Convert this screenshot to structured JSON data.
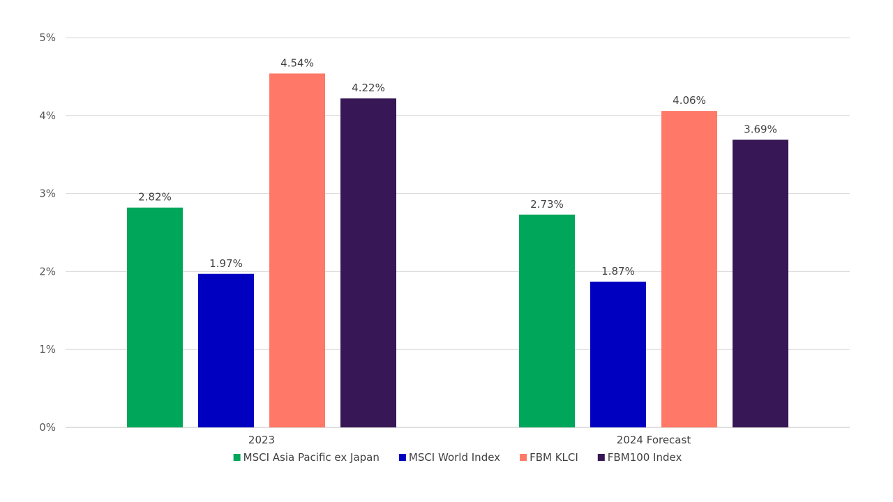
{
  "chart_data": {
    "type": "bar",
    "title": "",
    "xlabel": "",
    "ylabel": "",
    "categories": [
      "2023",
      "2024 Forecast"
    ],
    "series": [
      {
        "name": "MSCI Asia Pacific ex Japan",
        "color": "#00A65A",
        "values": [
          2.82,
          2.73
        ],
        "labels": [
          "2.82%",
          "2.73%"
        ]
      },
      {
        "name": "MSCI World Index",
        "color": "#0000C0",
        "values": [
          1.97,
          1.87
        ],
        "labels": [
          "1.97%",
          "1.87%"
        ]
      },
      {
        "name": "FBM KLCI",
        "color": "#FF7868",
        "values": [
          4.54,
          4.06
        ],
        "labels": [
          "4.54%",
          "4.06%"
        ]
      },
      {
        "name": "FBM100 Index",
        "color": "#371755",
        "values": [
          4.22,
          3.69
        ],
        "labels": [
          "4.22%",
          "3.69%"
        ]
      }
    ],
    "ylim": [
      0,
      5
    ],
    "yticks": [
      "0%",
      "1%",
      "2%",
      "3%",
      "4%",
      "5%"
    ],
    "grid": true,
    "legend_position": "bottom"
  }
}
